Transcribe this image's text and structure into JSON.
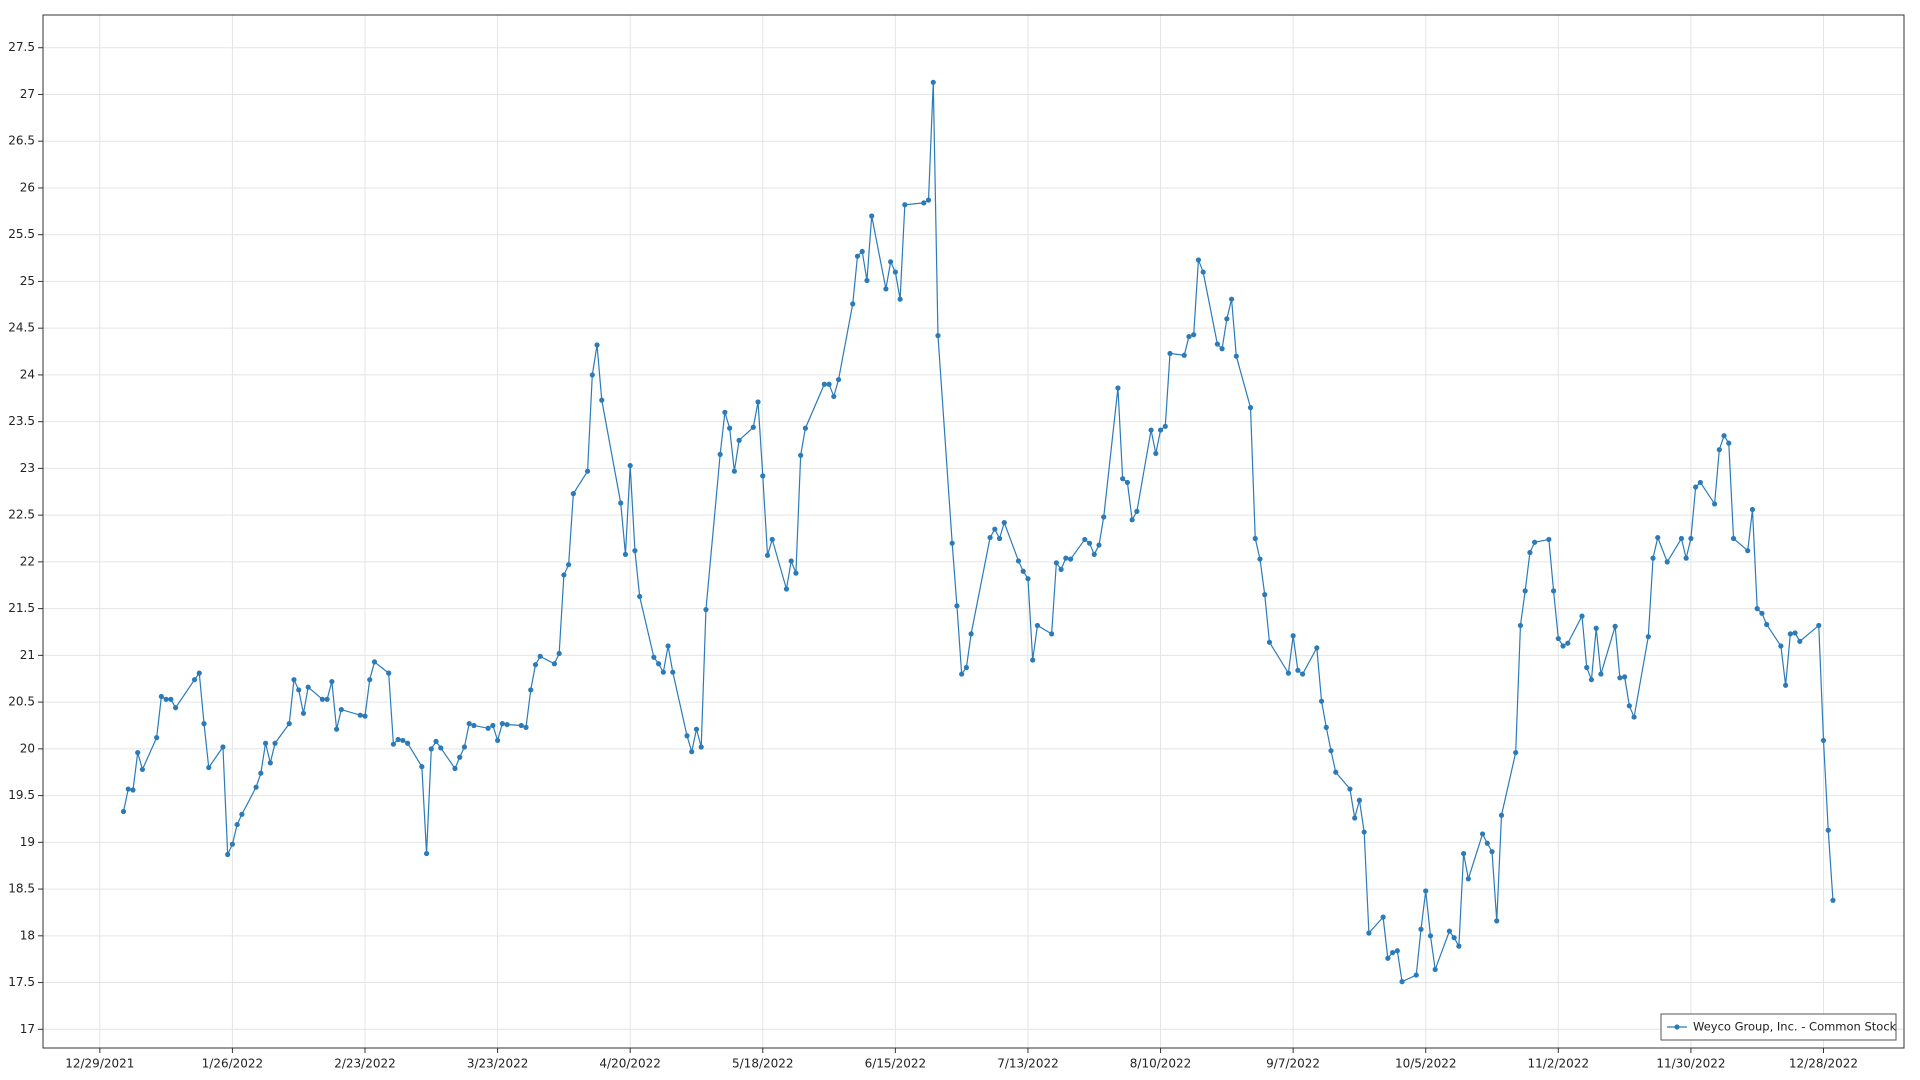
{
  "chart_data": {
    "type": "line",
    "x": [
      "1/3/2022",
      "1/4/2022",
      "1/5/2022",
      "1/6/2022",
      "1/7/2022",
      "1/10/2022",
      "1/11/2022",
      "1/12/2022",
      "1/13/2022",
      "1/14/2022",
      "1/18/2022",
      "1/19/2022",
      "1/20/2022",
      "1/21/2022",
      "1/24/2022",
      "1/25/2022",
      "1/26/2022",
      "1/27/2022",
      "1/28/2022",
      "1/31/2022",
      "2/1/2022",
      "2/2/2022",
      "2/3/2022",
      "2/4/2022",
      "2/7/2022",
      "2/8/2022",
      "2/9/2022",
      "2/10/2022",
      "2/11/2022",
      "2/14/2022",
      "2/15/2022",
      "2/16/2022",
      "2/17/2022",
      "2/18/2022",
      "2/22/2022",
      "2/23/2022",
      "2/24/2022",
      "2/25/2022",
      "2/28/2022",
      "3/1/2022",
      "3/2/2022",
      "3/3/2022",
      "3/4/2022",
      "3/7/2022",
      "3/8/2022",
      "3/9/2022",
      "3/10/2022",
      "3/11/2022",
      "3/14/2022",
      "3/15/2022",
      "3/16/2022",
      "3/17/2022",
      "3/18/2022",
      "3/21/2022",
      "3/22/2022",
      "3/23/2022",
      "3/24/2022",
      "3/25/2022",
      "3/28/2022",
      "3/29/2022",
      "3/30/2022",
      "3/31/2022",
      "4/1/2022",
      "4/4/2022",
      "4/5/2022",
      "4/6/2022",
      "4/7/2022",
      "4/8/2022",
      "4/11/2022",
      "4/12/2022",
      "4/13/2022",
      "4/14/2022",
      "4/18/2022",
      "4/19/2022",
      "4/20/2022",
      "4/21/2022",
      "4/22/2022",
      "4/25/2022",
      "4/26/2022",
      "4/27/2022",
      "4/28/2022",
      "4/29/2022",
      "5/2/2022",
      "5/3/2022",
      "5/4/2022",
      "5/5/2022",
      "5/6/2022",
      "5/9/2022",
      "5/10/2022",
      "5/11/2022",
      "5/12/2022",
      "5/13/2022",
      "5/16/2022",
      "5/17/2022",
      "5/18/2022",
      "5/19/2022",
      "5/20/2022",
      "5/23/2022",
      "5/24/2022",
      "5/25/2022",
      "5/26/2022",
      "5/27/2022",
      "5/31/2022",
      "6/1/2022",
      "6/2/2022",
      "6/3/2022",
      "6/6/2022",
      "6/7/2022",
      "6/8/2022",
      "6/9/2022",
      "6/10/2022",
      "6/13/2022",
      "6/14/2022",
      "6/15/2022",
      "6/16/2022",
      "6/17/2022",
      "6/21/2022",
      "6/22/2022",
      "6/23/2022",
      "6/24/2022",
      "6/27/2022",
      "6/28/2022",
      "6/29/2022",
      "6/30/2022",
      "7/1/2022",
      "7/5/2022",
      "7/6/2022",
      "7/7/2022",
      "7/8/2022",
      "7/11/2022",
      "7/12/2022",
      "7/13/2022",
      "7/14/2022",
      "7/15/2022",
      "7/18/2022",
      "7/19/2022",
      "7/20/2022",
      "7/21/2022",
      "7/22/2022",
      "7/25/2022",
      "7/26/2022",
      "7/27/2022",
      "7/28/2022",
      "7/29/2022",
      "8/1/2022",
      "8/2/2022",
      "8/3/2022",
      "8/4/2022",
      "8/5/2022",
      "8/8/2022",
      "8/9/2022",
      "8/10/2022",
      "8/11/2022",
      "8/12/2022",
      "8/15/2022",
      "8/16/2022",
      "8/17/2022",
      "8/18/2022",
      "8/19/2022",
      "8/22/2022",
      "8/23/2022",
      "8/24/2022",
      "8/25/2022",
      "8/26/2022",
      "8/29/2022",
      "8/30/2022",
      "8/31/2022",
      "9/1/2022",
      "9/2/2022",
      "9/6/2022",
      "9/7/2022",
      "9/8/2022",
      "9/9/2022",
      "9/12/2022",
      "9/13/2022",
      "9/14/2022",
      "9/15/2022",
      "9/16/2022",
      "9/19/2022",
      "9/20/2022",
      "9/21/2022",
      "9/22/2022",
      "9/23/2022",
      "9/26/2022",
      "9/27/2022",
      "9/28/2022",
      "9/29/2022",
      "9/30/2022",
      "10/3/2022",
      "10/4/2022",
      "10/5/2022",
      "10/6/2022",
      "10/7/2022",
      "10/10/2022",
      "10/11/2022",
      "10/12/2022",
      "10/13/2022",
      "10/14/2022",
      "10/17/2022",
      "10/18/2022",
      "10/19/2022",
      "10/20/2022",
      "10/21/2022",
      "10/24/2022",
      "10/25/2022",
      "10/26/2022",
      "10/27/2022",
      "10/28/2022",
      "10/31/2022",
      "11/1/2022",
      "11/2/2022",
      "11/3/2022",
      "11/4/2022",
      "11/7/2022",
      "11/8/2022",
      "11/9/2022",
      "11/10/2022",
      "11/11/2022",
      "11/14/2022",
      "11/15/2022",
      "11/16/2022",
      "11/17/2022",
      "11/18/2022",
      "11/21/2022",
      "11/22/2022",
      "11/23/2022",
      "11/25/2022",
      "11/28/2022",
      "11/29/2022",
      "11/30/2022",
      "12/1/2022",
      "12/2/2022",
      "12/5/2022",
      "12/6/2022",
      "12/7/2022",
      "12/8/2022",
      "12/9/2022",
      "12/12/2022",
      "12/13/2022",
      "12/14/2022",
      "12/15/2022",
      "12/16/2022",
      "12/19/2022",
      "12/20/2022",
      "12/21/2022",
      "12/22/2022",
      "12/23/2022",
      "12/27/2022",
      "12/28/2022",
      "12/29/2022",
      "12/30/2022"
    ],
    "series": [
      {
        "name": "Weyco Group, Inc. - Common Stock",
        "color": "#2b7bb9",
        "values": [
          19.33,
          19.57,
          19.56,
          19.96,
          19.78,
          20.12,
          20.56,
          20.53,
          20.53,
          20.44,
          20.74,
          20.81,
          20.27,
          19.8,
          20.02,
          18.87,
          18.98,
          19.19,
          19.3,
          19.59,
          19.74,
          20.06,
          19.85,
          20.06,
          20.27,
          20.74,
          20.63,
          20.38,
          20.66,
          20.53,
          20.53,
          20.72,
          20.21,
          20.42,
          20.36,
          20.35,
          20.74,
          20.93,
          20.81,
          20.05,
          20.1,
          20.09,
          20.06,
          19.81,
          18.88,
          20.0,
          20.08,
          20.01,
          19.79,
          19.91,
          20.02,
          20.27,
          20.25,
          20.22,
          20.25,
          20.09,
          20.27,
          20.26,
          20.25,
          20.23,
          20.63,
          20.9,
          20.99,
          20.91,
          21.02,
          21.86,
          21.97,
          22.73,
          22.97,
          24.0,
          24.32,
          23.73,
          22.63,
          22.08,
          23.03,
          22.12,
          21.63,
          20.98,
          20.91,
          20.82,
          21.1,
          20.82,
          20.14,
          19.97,
          20.21,
          20.02,
          21.49,
          23.15,
          23.6,
          23.43,
          22.97,
          23.3,
          23.44,
          23.71,
          22.92,
          22.07,
          22.24,
          21.71,
          22.01,
          21.88,
          23.14,
          23.43,
          23.9,
          23.9,
          23.77,
          23.95,
          24.76,
          25.27,
          25.32,
          25.01,
          25.7,
          24.92,
          25.21,
          25.1,
          24.81,
          25.82,
          25.84,
          25.87,
          27.13,
          24.42,
          22.2,
          21.53,
          20.8,
          20.87,
          21.23,
          22.26,
          22.35,
          22.25,
          22.42,
          22.01,
          21.9,
          21.82,
          20.95,
          21.32,
          21.23,
          21.99,
          21.92,
          22.04,
          22.03,
          22.24,
          22.2,
          22.08,
          22.18,
          22.48,
          23.86,
          22.89,
          22.85,
          22.45,
          22.54,
          23.41,
          23.16,
          23.41,
          23.45,
          24.23,
          24.21,
          24.41,
          24.43,
          25.23,
          25.1,
          24.33,
          24.28,
          24.6,
          24.81,
          24.2,
          23.65,
          22.25,
          22.03,
          21.65,
          21.14,
          20.81,
          21.21,
          20.84,
          20.8,
          21.08,
          20.51,
          20.23,
          19.98,
          19.75,
          19.57,
          19.26,
          19.45,
          19.11,
          18.03,
          18.2,
          17.76,
          17.82,
          17.84,
          17.51,
          17.58,
          18.07,
          18.48,
          18.0,
          17.64,
          18.05,
          17.98,
          17.89,
          18.88,
          18.61,
          19.09,
          18.99,
          18.9,
          18.16,
          19.29,
          19.96,
          21.32,
          21.69,
          22.1,
          22.21,
          22.24,
          21.69,
          21.18,
          21.1,
          21.13,
          21.42,
          20.87,
          20.74,
          21.29,
          20.8,
          21.31,
          20.76,
          20.77,
          20.46,
          20.34,
          21.2,
          22.04,
          22.26,
          22.0,
          22.25,
          22.04,
          22.25,
          22.8,
          22.85,
          22.62,
          23.2,
          23.35,
          23.27,
          22.25,
          22.12,
          22.56,
          21.5,
          21.45,
          21.33,
          21.1,
          20.68,
          21.23,
          21.24,
          21.15,
          21.32,
          20.09,
          19.13,
          18.38
        ]
      }
    ],
    "xlim": [
      "12/17/2021",
      "1/14/2023"
    ],
    "xticks": [
      "12/29/2021",
      "1/26/2022",
      "2/23/2022",
      "3/23/2022",
      "4/20/2022",
      "5/18/2022",
      "6/15/2022",
      "7/13/2022",
      "8/10/2022",
      "9/7/2022",
      "10/5/2022",
      "11/2/2022",
      "11/30/2022",
      "12/28/2022"
    ],
    "ylim": [
      16.8,
      27.85
    ],
    "yticks": [
      17,
      17.5,
      18,
      18.5,
      19,
      19.5,
      20,
      20.5,
      21,
      21.5,
      22,
      22.5,
      23,
      23.5,
      24,
      24.5,
      25,
      25.5,
      26,
      26.5,
      27,
      27.5
    ],
    "grid": true,
    "legend": "lower right"
  }
}
